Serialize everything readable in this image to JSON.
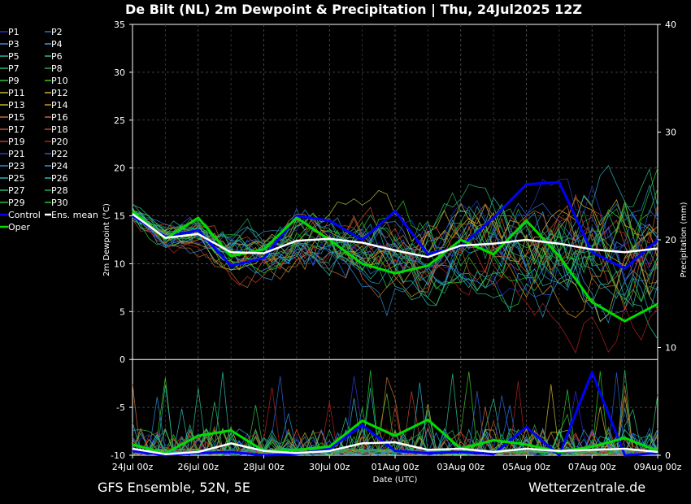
{
  "title": "De Bilt  (NL)  2m Dewpoint & Precipitation | Thu, 24Jul2025 12Z",
  "footer": {
    "left": "GFS Ensemble, 52N, 5E",
    "right": "Wetterzentrale.de"
  },
  "chart_data": {
    "type": "line",
    "title": "De Bilt  (NL)  2m Dewpoint & Precipitation | Thu, 24Jul2025 12Z",
    "xlabel": "Date (UTC)",
    "ylabel": "2m Dewpoint (°C)",
    "y2label": "Precipitation (mm)",
    "xticks": [
      "24Jul 00z",
      "26Jul 00z",
      "28Jul 00z",
      "30Jul 00z",
      "01Aug 00z",
      "03Aug 00z",
      "05Aug 00z",
      "07Aug 00z",
      "09Aug 00z"
    ],
    "x_range_days": [
      0,
      16
    ],
    "ylim": [
      -10,
      35
    ],
    "yticks": [
      -10,
      -5,
      0,
      5,
      10,
      15,
      20,
      25,
      30,
      35
    ],
    "y2lim": [
      0,
      40
    ],
    "y2ticks": [
      0,
      10,
      20,
      30,
      40
    ],
    "grid": true,
    "legend_placement": "left",
    "legend": [
      "P1",
      "P2",
      "P3",
      "P4",
      "P5",
      "P6",
      "P7",
      "P8",
      "P9",
      "P10",
      "P11",
      "P12",
      "P13",
      "P14",
      "P15",
      "P16",
      "P17",
      "P18",
      "P19",
      "P20",
      "P21",
      "P22",
      "P23",
      "P24",
      "P25",
      "P26",
      "P27",
      "P28",
      "P29",
      "P30",
      "Control",
      "Ens. mean",
      "Oper"
    ],
    "series_colors": [
      "#2a2ad8",
      "#2a6ee0",
      "#3a8ad8",
      "#38a0c8",
      "#30b0b8",
      "#30b890",
      "#30b868",
      "#30a850",
      "#30c040",
      "#40c020",
      "#b8c030",
      "#d0b030",
      "#c8b030",
      "#d09020",
      "#c07030",
      "#c06830",
      "#c05028",
      "#c04828",
      "#c03828",
      "#b02020",
      "#2838c8",
      "#2860d0",
      "#2888d0",
      "#2898d8",
      "#28b0c0",
      "#28b8a0",
      "#28b878",
      "#28a858",
      "#30b840",
      "#20c820",
      "#0000ff",
      "#ffffff",
      "#00dd00"
    ],
    "dewpoint": {
      "x_days": [
        0,
        1,
        2,
        3,
        4,
        5,
        6,
        7,
        8,
        9,
        10,
        11,
        12,
        13,
        14,
        15,
        16
      ],
      "ens_mean": [
        15.2,
        12.7,
        13.1,
        11.2,
        11.1,
        12.4,
        12.6,
        12.2,
        11.4,
        10.7,
        11.9,
        12.1,
        12.5,
        12.1,
        11.5,
        11.2,
        11.6
      ],
      "control": [
        15.0,
        12.8,
        13.5,
        9.8,
        10.6,
        15.0,
        14.5,
        12.5,
        15.5,
        11.0,
        11.8,
        14.8,
        18.3,
        18.5,
        11.2,
        9.5,
        12.5
      ],
      "oper": [
        15.5,
        12.6,
        14.8,
        10.8,
        11.5,
        14.8,
        12.5,
        10.0,
        9.0,
        9.8,
        12.5,
        11.0,
        14.5,
        10.8,
        6.0,
        4.0,
        5.8
      ]
    },
    "precipitation": {
      "x_days": [
        0,
        1,
        2,
        3,
        4,
        5,
        6,
        7,
        8,
        9,
        10,
        11,
        12,
        13,
        14,
        15,
        16
      ],
      "ens_mean": [
        0.6,
        0.1,
        0.3,
        1.1,
        0.4,
        0.2,
        0.4,
        1.1,
        1.2,
        0.5,
        0.6,
        0.3,
        0.6,
        0.4,
        0.5,
        0.6,
        0.3
      ],
      "control": [
        0.4,
        0.0,
        0.2,
        0.3,
        0.0,
        0.1,
        0.6,
        2.8,
        0.4,
        0.2,
        0.3,
        0.1,
        2.6,
        0.0,
        7.7,
        0.0,
        0.2
      ],
      "oper": [
        1.0,
        0.2,
        1.8,
        2.3,
        0.4,
        0.5,
        0.8,
        3.2,
        1.8,
        3.3,
        0.6,
        1.4,
        1.0,
        0.3,
        0.8,
        1.6,
        0.4
      ]
    }
  }
}
